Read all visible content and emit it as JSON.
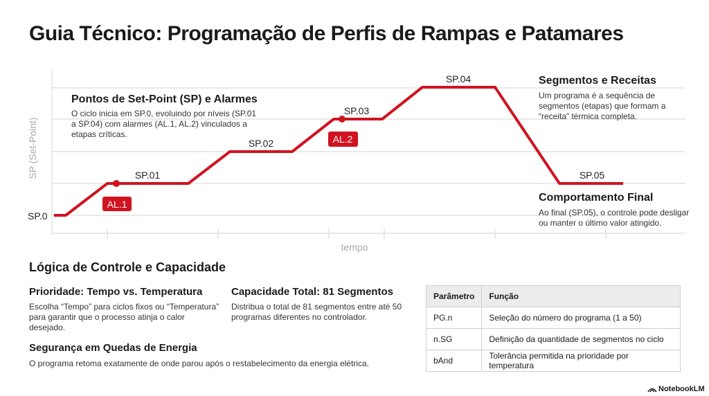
{
  "title": "Guia Técnico: Programação de Perfis de Rampas e Patamares",
  "profile": {
    "y_axis_label": "SP (Set-Point)",
    "x_axis_label": "tempo",
    "setpoints": [
      "SP.0",
      "SP.01",
      "SP.02",
      "SP.03",
      "SP.04",
      "SP.05"
    ],
    "alarms": [
      "AL.1",
      "AL.2"
    ]
  },
  "callouts": [
    {
      "heading": "Pontos de Set-Point (SP) e Alarmes",
      "text": "O ciclo inicia em SP.0, evoluindo por níveis (SP.01 a SP.04) com alarmes (AL.1, AL.2) vinculados a etapas críticas."
    },
    {
      "heading": "Segmentos e Receitas",
      "text": "Um programa é a sequência de segmentos (etapas) que formam a “receita” térmica completa."
    },
    {
      "heading": "Comportamento Final",
      "text": "Ao final (SP.05), o controle pode desligar ou manter o último valor atingido."
    }
  ],
  "control": {
    "heading": "Lógica de Controle e Capacidade",
    "blocks": [
      {
        "heading": "Prioridade: Tempo vs. Temperatura",
        "text": "Escolha “Tempo” para ciclos fixos ou “Temperatura” para garantir que o processo atinja o calor desejado."
      },
      {
        "heading": "Capacidade Total: 81 Segmentos",
        "text": "Distribua o total de 81 segmentos entre até 50 programas diferentes no controlador."
      },
      {
        "heading": "Segurança em Quedas de Energia",
        "text": "O programa retoma exatamente de onde parou após o restabelecimento da energia elétrica."
      }
    ]
  },
  "table": {
    "header": [
      "Parâmetro",
      "Função"
    ],
    "rows": [
      [
        "PG.n",
        "Seleção do número do programa (1 a 50)"
      ],
      [
        "n.SG",
        "Definição da quantidade de segmentos no ciclo"
      ],
      [
        "bAnd",
        "Tolerância permitida na prioridade por temperatura"
      ]
    ]
  },
  "footer": "NotebookLM"
}
